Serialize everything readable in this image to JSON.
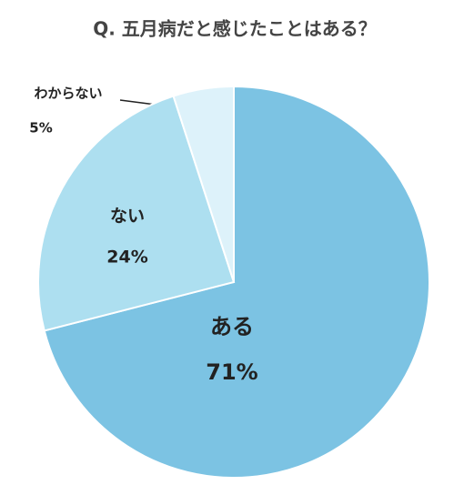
{
  "chart_data": {
    "type": "pie",
    "title": "Q. 五月病だと感じたことはある？",
    "categories": [
      "ある",
      "ない",
      "わからない"
    ],
    "values": [
      71,
      24,
      5
    ],
    "value_labels": [
      "71%",
      "24%",
      "5%"
    ],
    "colors": [
      "#7cc3e3",
      "#addff0",
      "#ddf2fa"
    ]
  }
}
